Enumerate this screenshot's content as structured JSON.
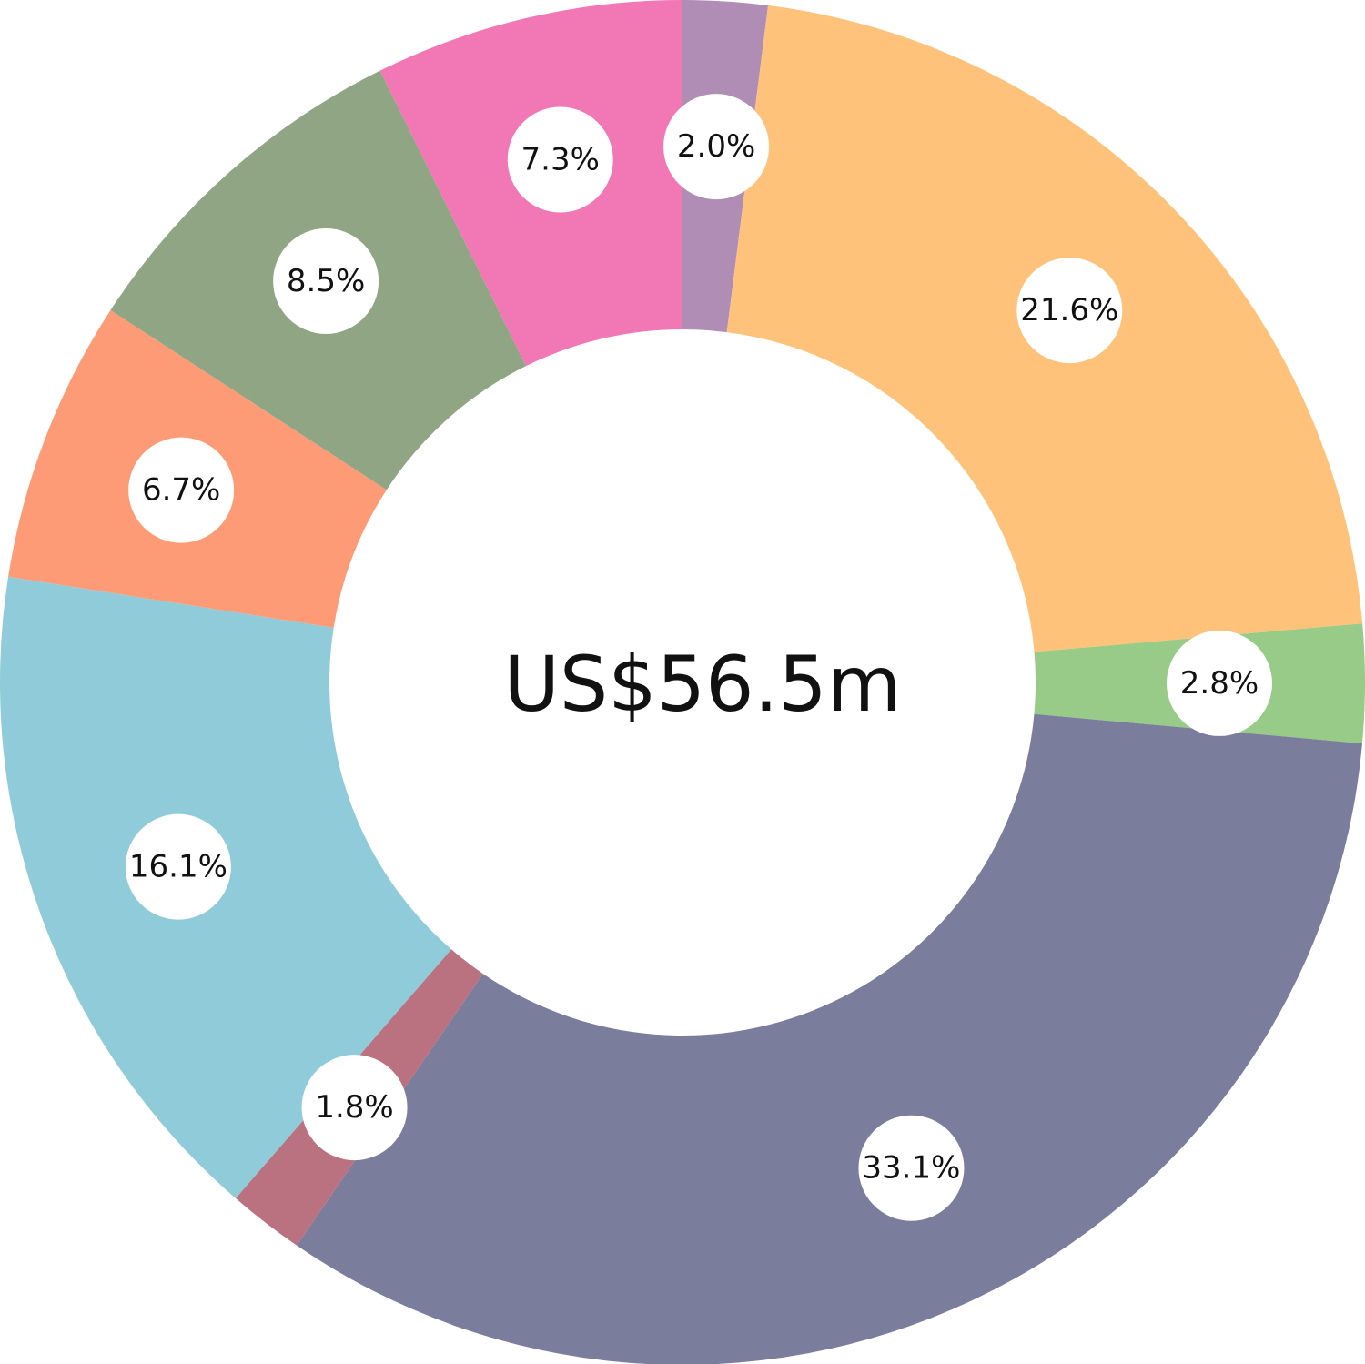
{
  "chart_data": {
    "type": "pie",
    "center_label": "US$56.5m",
    "slices": [
      {
        "label": "2.0%",
        "value": 2.0,
        "color": "#af8db5"
      },
      {
        "label": "21.6%",
        "value": 21.6,
        "color": "#fec27b"
      },
      {
        "label": "2.8%",
        "value": 2.8,
        "color": "#98cb87"
      },
      {
        "label": "33.1%",
        "value": 33.1,
        "color": "#7a7d9b"
      },
      {
        "label": "1.8%",
        "value": 1.8,
        "color": "#ba7280"
      },
      {
        "label": "16.1%",
        "value": 16.1,
        "color": "#8fcbd9"
      },
      {
        "label": "6.7%",
        "value": 6.7,
        "color": "#fe9b77"
      },
      {
        "label": "8.5%",
        "value": 8.5,
        "color": "#90a583"
      },
      {
        "label": "7.3%",
        "value": 7.3,
        "color": "#f178b4"
      }
    ]
  }
}
